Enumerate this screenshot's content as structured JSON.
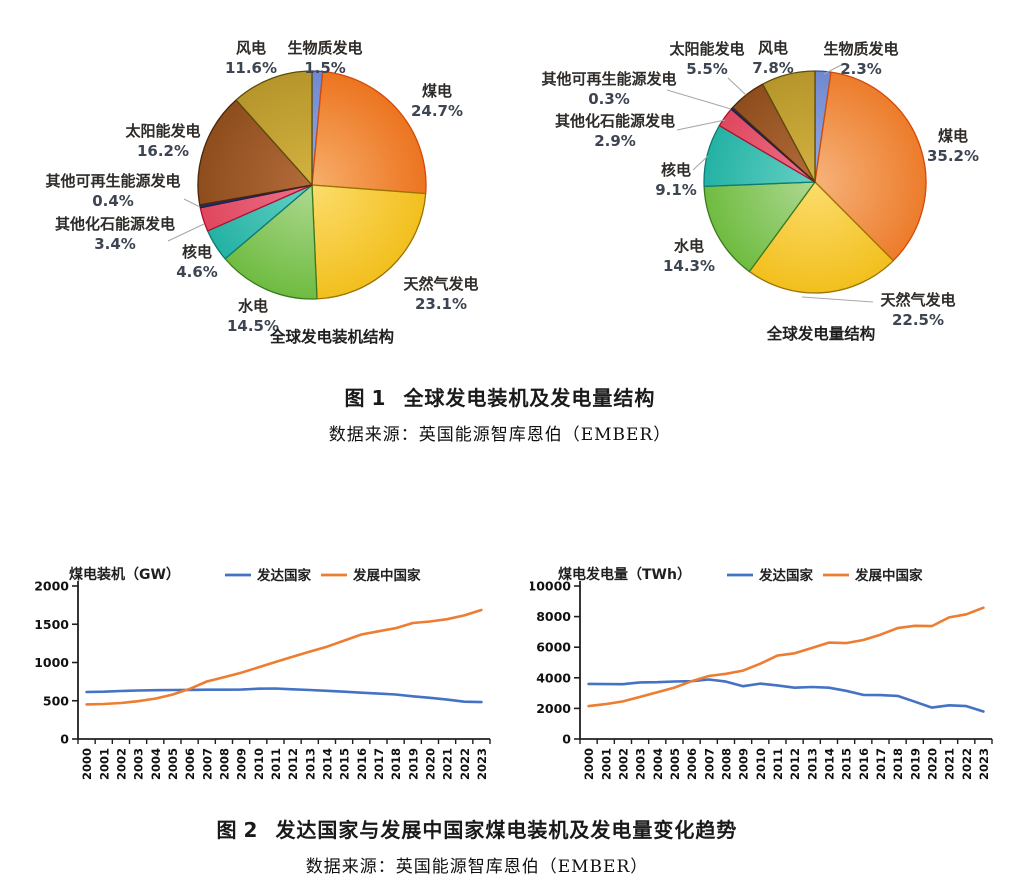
{
  "figure1": {
    "label": "图 1",
    "title": "全球发电装机及发电量结构",
    "source": "数据来源：英国能源智库恩伯（EMBER）"
  },
  "figure2": {
    "label": "图 2",
    "title": "发达国家与发展中国家煤电装机及发电量变化趋势",
    "source": "数据来源：英国能源智库恩伯（EMBER）"
  },
  "colors": {
    "developed_line": "#4472C4",
    "developing_line": "#ED7D31",
    "axis": "#1f1f1f",
    "pie_label": "#2e2b28",
    "pie_percent": "#3d4553",
    "leader_line": "#a8a8a8",
    "legend_text": "#1f1f1f"
  },
  "chart_data": [
    {
      "type": "pie",
      "title": "全球发电装机结构",
      "slices": [
        {
          "key": "biomass",
          "label": "生物质发电",
          "value": 1.5,
          "fill_light": "#93A9E3",
          "fill": "#6F89D1",
          "edge": "#31509F"
        },
        {
          "key": "coal",
          "label": "煤电",
          "value": 24.7,
          "fill_light": "#F6AC67",
          "fill": "#EC7420",
          "edge": "#D24A0A"
        },
        {
          "key": "gas",
          "label": "天然气发电",
          "value": 23.1,
          "fill_light": "#FBDB69",
          "fill": "#F2BF1D",
          "edge": "#9C7400"
        },
        {
          "key": "hydro",
          "label": "水电",
          "value": 14.5,
          "fill_light": "#ABD78D",
          "fill": "#6FBC41",
          "edge": "#3A7A1D"
        },
        {
          "key": "nuclear",
          "label": "核电",
          "value": 4.6,
          "fill_light": "#62CFC3",
          "fill": "#23B2A4",
          "edge": "#0C7C73"
        },
        {
          "key": "fossil",
          "label": "其他化石能源发电",
          "value": 3.4,
          "fill_light": "#EC7187",
          "fill": "#DF475E",
          "edge": "#AE1030"
        },
        {
          "key": "renew",
          "label": "其他可再生能源发电",
          "value": 0.4,
          "fill_light": "#2B3E86",
          "fill": "#20306E",
          "edge": "#14204E"
        },
        {
          "key": "solar",
          "label": "太阳能发电",
          "value": 16.2,
          "fill_light": "#B26A39",
          "fill": "#8E4D1D",
          "edge": "#4C2607"
        },
        {
          "key": "wind",
          "label": "风电",
          "value": 11.6,
          "fill_light": "#D2B040",
          "fill": "#B6962B",
          "edge": "#5C4C0C"
        }
      ]
    },
    {
      "type": "pie",
      "title": "全球发电量结构",
      "slices": [
        {
          "key": "biomass",
          "label": "生物质发电",
          "value": 2.3,
          "fill_light": "#93A9E3",
          "fill": "#6F89D1",
          "edge": "#31509F"
        },
        {
          "key": "coal",
          "label": "煤电",
          "value": 35.2,
          "fill_light": "#F6B077",
          "fill": "#EC7C2B",
          "edge": "#D24A0A"
        },
        {
          "key": "gas",
          "label": "天然气发电",
          "value": 22.5,
          "fill_light": "#FBDB69",
          "fill": "#F2BF1D",
          "edge": "#9C7400"
        },
        {
          "key": "hydro",
          "label": "水电",
          "value": 14.3,
          "fill_light": "#ABD78D",
          "fill": "#6FBC41",
          "edge": "#3A7A1D"
        },
        {
          "key": "nuclear",
          "label": "核电",
          "value": 9.1,
          "fill_light": "#62CFC3",
          "fill": "#23B2A4",
          "edge": "#0C7C73"
        },
        {
          "key": "fossil",
          "label": "其他化石能源发电",
          "value": 2.9,
          "fill_light": "#EC7187",
          "fill": "#DF475E",
          "edge": "#AE1030"
        },
        {
          "key": "renew",
          "label": "其他可再生能源发电",
          "value": 0.3,
          "fill_light": "#2B3E86",
          "fill": "#20306E",
          "edge": "#14204E"
        },
        {
          "key": "solar",
          "label": "太阳能发电",
          "value": 5.5,
          "fill_light": "#B26A39",
          "fill": "#8E4D1D",
          "edge": "#4C2607"
        },
        {
          "key": "wind",
          "label": "风电",
          "value": 7.8,
          "fill_light": "#D2B040",
          "fill": "#B6962B",
          "edge": "#5C4C0C"
        }
      ]
    },
    {
      "type": "line",
      "title": "煤电装机（GW）",
      "x": [
        2000,
        2001,
        2002,
        2003,
        2004,
        2005,
        2006,
        2007,
        2008,
        2009,
        2010,
        2011,
        2012,
        2013,
        2014,
        2015,
        2016,
        2017,
        2018,
        2019,
        2020,
        2021,
        2022,
        2023
      ],
      "ylim": [
        0,
        2000
      ],
      "yticks": [
        0,
        500,
        1000,
        1500,
        2000
      ],
      "legend_position": "top",
      "grid": false,
      "series": [
        {
          "key": "developed",
          "name": "发达国家",
          "color": "#4472C4",
          "values": [
            615,
            618,
            628,
            634,
            638,
            640,
            642,
            644,
            644,
            646,
            658,
            660,
            650,
            640,
            630,
            618,
            605,
            594,
            582,
            558,
            538,
            515,
            488,
            482
          ]
        },
        {
          "key": "developing",
          "name": "发展中国家",
          "color": "#ED7D31",
          "values": [
            452,
            458,
            470,
            494,
            528,
            580,
            655,
            752,
            808,
            866,
            936,
            1006,
            1076,
            1142,
            1206,
            1286,
            1366,
            1408,
            1448,
            1516,
            1536,
            1566,
            1616,
            1686
          ]
        }
      ]
    },
    {
      "type": "line",
      "title": "煤电发电量（TWh）",
      "x": [
        2000,
        2001,
        2002,
        2003,
        2004,
        2005,
        2006,
        2007,
        2008,
        2009,
        2010,
        2011,
        2012,
        2013,
        2014,
        2015,
        2016,
        2017,
        2018,
        2019,
        2020,
        2021,
        2022,
        2023
      ],
      "ylim": [
        0,
        10000
      ],
      "yticks": [
        0,
        2000,
        4000,
        6000,
        8000,
        10000
      ],
      "legend_position": "top",
      "grid": false,
      "series": [
        {
          "key": "developed",
          "name": "发达国家",
          "color": "#4472C4",
          "values": [
            3600,
            3590,
            3580,
            3700,
            3710,
            3760,
            3780,
            3890,
            3750,
            3450,
            3620,
            3500,
            3350,
            3400,
            3350,
            3150,
            2880,
            2870,
            2820,
            2440,
            2050,
            2200,
            2150,
            1800
          ]
        },
        {
          "key": "developing",
          "name": "发展中国家",
          "color": "#ED7D31",
          "values": [
            2150,
            2280,
            2460,
            2750,
            3050,
            3360,
            3780,
            4120,
            4260,
            4470,
            4920,
            5450,
            5600,
            5950,
            6300,
            6270,
            6470,
            6820,
            7250,
            7400,
            7380,
            7950,
            8150,
            8580
          ]
        }
      ]
    }
  ]
}
